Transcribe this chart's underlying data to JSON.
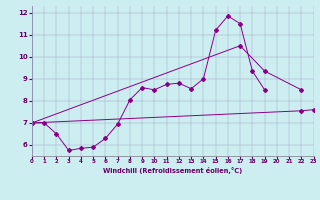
{
  "xlabel": "Windchill (Refroidissement éolien,°C)",
  "bg_color": "#cceef0",
  "line_color": "#880088",
  "xlim": [
    0,
    23
  ],
  "ylim": [
    5.5,
    12.3
  ],
  "xticks": [
    0,
    1,
    2,
    3,
    4,
    5,
    6,
    7,
    8,
    9,
    10,
    11,
    12,
    13,
    14,
    15,
    16,
    17,
    18,
    19,
    20,
    21,
    22,
    23
  ],
  "yticks": [
    6,
    7,
    8,
    9,
    10,
    11,
    12
  ],
  "line_jagged": {
    "x": [
      0,
      1,
      2,
      3,
      4,
      5,
      6,
      7,
      8,
      9,
      10,
      11,
      12,
      13,
      14,
      15,
      16,
      17,
      18,
      19
    ],
    "y": [
      7.0,
      7.0,
      6.5,
      5.75,
      5.85,
      5.9,
      6.3,
      6.95,
      8.05,
      8.6,
      8.5,
      8.75,
      8.8,
      8.55,
      9.0,
      11.2,
      11.85,
      11.5,
      9.35,
      8.5
    ]
  },
  "line_upper": {
    "x": [
      0,
      17,
      19,
      22
    ],
    "y": [
      7.0,
      10.5,
      9.35,
      8.5
    ]
  },
  "line_lower": {
    "x": [
      0,
      22,
      23
    ],
    "y": [
      7.0,
      7.55,
      7.6
    ]
  }
}
